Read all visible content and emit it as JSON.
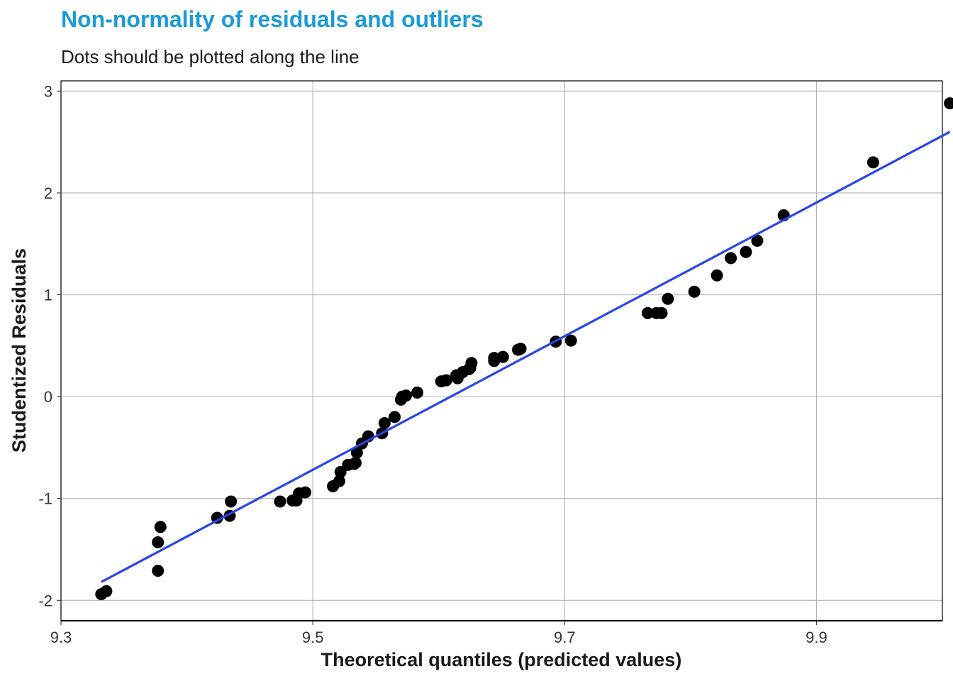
{
  "colors": {
    "title": "#1a9bd7",
    "points": "#000000",
    "line": "#2b44e8",
    "grid": "#b3b3b3",
    "panel_border": "#000000"
  },
  "chart_data": {
    "type": "scatter",
    "title": "Non-normality of residuals and outliers",
    "subtitle": "Dots should be plotted along the line",
    "xlabel": "Theoretical quantiles (predicted values)",
    "ylabel": "Studentized Residuals",
    "xlim": [
      9.3,
      10.0
    ],
    "ylim": [
      -2.2,
      3.1
    ],
    "x_ticks": [
      9.3,
      9.5,
      9.7,
      9.9
    ],
    "x_tick_labels": [
      "9.3",
      "9.5",
      "9.7",
      "9.9"
    ],
    "y_ticks": [
      -2,
      -1,
      0,
      1,
      2,
      3
    ],
    "y_tick_labels": [
      "-2",
      "-1",
      "0",
      "1",
      "2",
      "3"
    ],
    "grid": true,
    "series": [
      {
        "type": "scatter",
        "x": [
          9.332,
          9.336,
          9.377,
          9.377,
          9.379,
          9.424,
          9.434,
          9.435,
          9.474,
          9.484,
          9.487,
          9.489,
          9.494,
          9.516,
          9.521,
          9.522,
          9.528,
          9.533,
          9.534,
          9.535,
          9.539,
          9.544,
          9.555,
          9.557,
          9.565,
          9.57,
          9.571,
          9.574,
          9.583,
          9.602,
          9.606,
          9.614,
          9.615,
          9.619,
          9.624,
          9.625,
          9.626,
          9.644,
          9.644,
          9.651,
          9.663,
          9.665,
          9.693,
          9.705,
          9.766,
          9.773,
          9.777,
          9.782,
          9.803,
          9.821,
          9.832,
          9.844,
          9.853,
          9.874,
          9.945,
          10.006
        ],
        "y": [
          -1.94,
          -1.91,
          -1.71,
          -1.43,
          -1.28,
          -1.19,
          -1.17,
          -1.03,
          -1.03,
          -1.02,
          -1.02,
          -0.95,
          -0.94,
          -0.88,
          -0.83,
          -0.74,
          -0.67,
          -0.66,
          -0.65,
          -0.55,
          -0.46,
          -0.39,
          -0.36,
          -0.26,
          -0.2,
          -0.03,
          0.0,
          0.01,
          0.04,
          0.15,
          0.16,
          0.21,
          0.18,
          0.24,
          0.27,
          0.28,
          0.33,
          0.35,
          0.38,
          0.39,
          0.46,
          0.47,
          0.54,
          0.55,
          0.82,
          0.82,
          0.82,
          0.96,
          1.03,
          1.19,
          1.36,
          1.42,
          1.53,
          1.78,
          2.3,
          2.88
        ]
      },
      {
        "type": "line",
        "x": [
          9.332,
          10.006
        ],
        "y": [
          -1.82,
          2.6
        ]
      }
    ]
  }
}
